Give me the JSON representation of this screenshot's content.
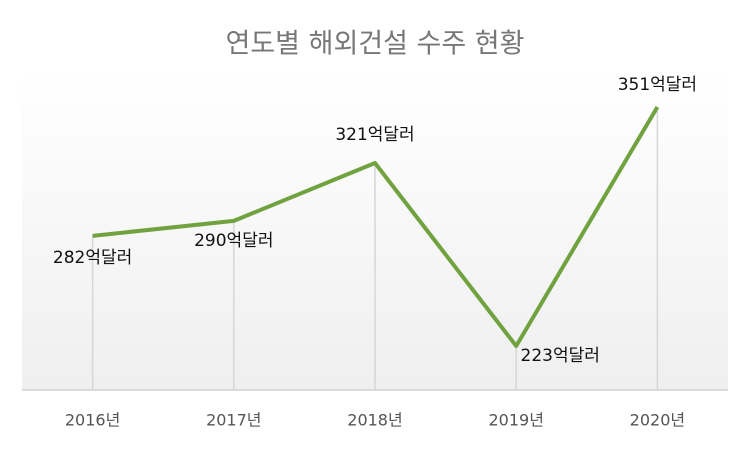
{
  "chart_data": {
    "type": "line",
    "title": "연도별 해외건설 수주 현황",
    "categories": [
      "2016년",
      "2017년",
      "2018년",
      "2019년",
      "2020년"
    ],
    "series": [
      {
        "color": "#70a23f",
        "values": [
          282,
          290,
          321,
          223,
          351
        ],
        "value_labels": [
          "282억달러",
          "290억달러",
          "321억달러",
          "223억달러",
          "351억달러"
        ]
      }
    ]
  }
}
